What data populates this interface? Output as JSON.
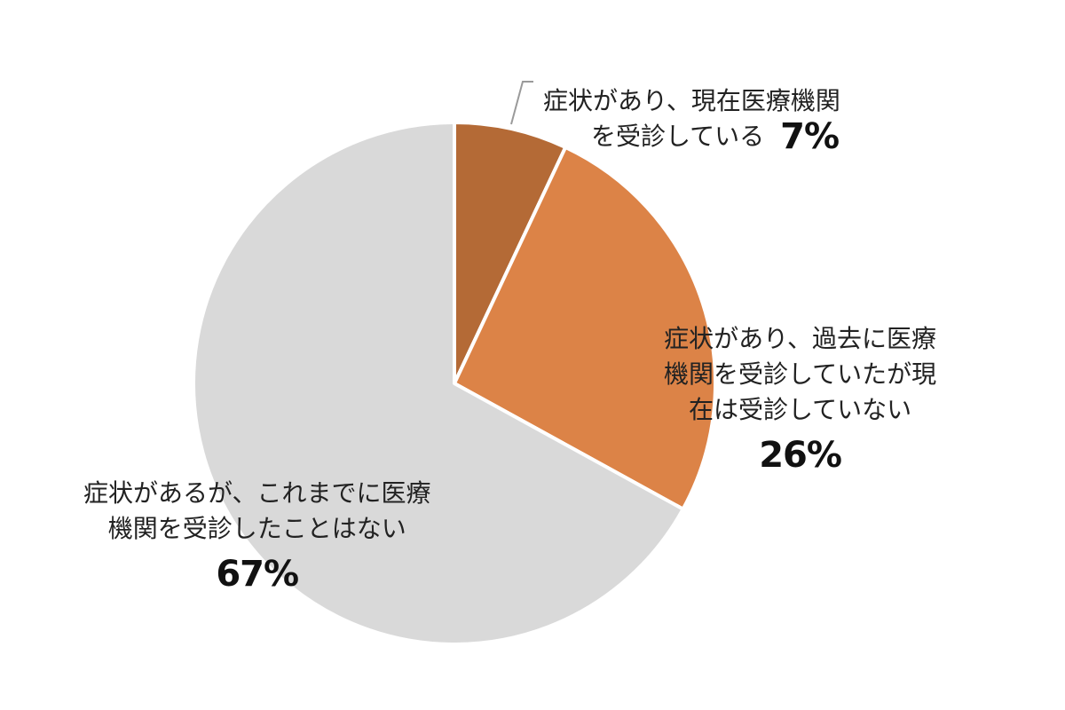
{
  "chart_data": {
    "type": "pie",
    "title": "",
    "start": "12 o'clock, clockwise",
    "slices": [
      {
        "label_lines": [
          "症状があり、現在医療機関",
          "を受診している"
        ],
        "value": 7,
        "value_label": "7%",
        "color": "#b46a36"
      },
      {
        "label_lines": [
          "症状があり、過去に医療",
          "機関を受診していたが現",
          "在は受診していない"
        ],
        "value": 26,
        "value_label": "26%",
        "color": "#dc8347"
      },
      {
        "label_lines": [
          "症状があるが、これまでに医療",
          "機関を受診したことはない"
        ],
        "value": 67,
        "value_label": "67%",
        "color": "#d9d9d9"
      }
    ],
    "slice_border_color": "#ffffff",
    "leader_line_color": "#9a9a9a"
  }
}
